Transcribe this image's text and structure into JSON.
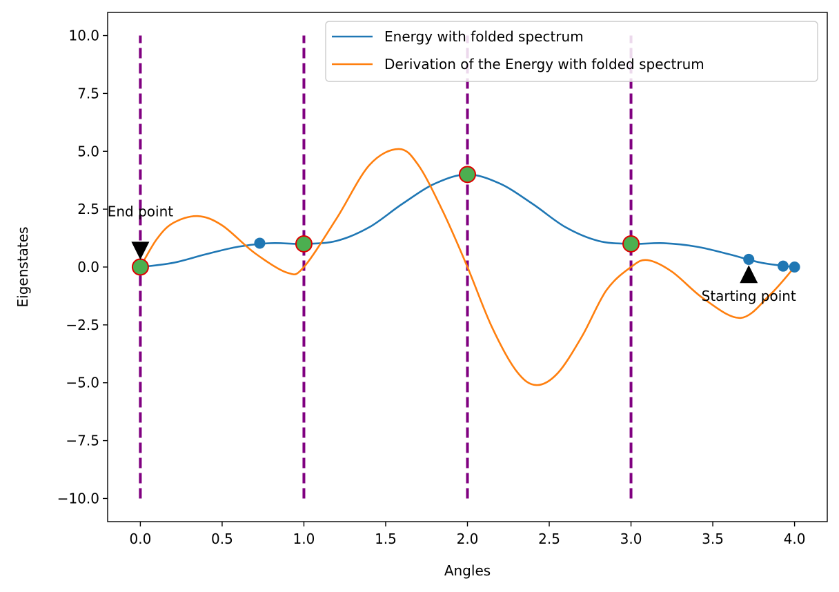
{
  "chart_data": {
    "type": "line",
    "title": "",
    "xlabel": "Angles",
    "ylabel": "Eigenstates",
    "xlim": [
      -0.2,
      4.2
    ],
    "ylim": [
      -11.0,
      11.0
    ],
    "xticks": [
      0.0,
      0.5,
      1.0,
      1.5,
      2.0,
      2.5,
      3.0,
      3.5,
      4.0
    ],
    "xtick_labels": [
      "0.0",
      "0.5",
      "1.0",
      "1.5",
      "2.0",
      "2.5",
      "3.0",
      "3.5",
      "4.0"
    ],
    "yticks": [
      -10.0,
      -7.5,
      -5.0,
      -2.5,
      0.0,
      2.5,
      5.0,
      7.5,
      10.0
    ],
    "ytick_labels": [
      "−10.0",
      "−7.5",
      "−5.0",
      "−2.5",
      "0.0",
      "2.5",
      "5.0",
      "7.5",
      "10.0"
    ],
    "grid": false,
    "legend_position": "top-right",
    "series": [
      {
        "name": "Energy with folded spectrum",
        "color": "#1f77b4",
        "x": [
          0.0,
          0.2,
          0.4,
          0.6,
          0.8,
          1.0,
          1.2,
          1.4,
          1.6,
          1.8,
          2.0,
          2.2,
          2.4,
          2.6,
          2.8,
          3.0,
          3.2,
          3.4,
          3.6,
          3.8,
          4.0
        ],
        "values": [
          0.0,
          0.18,
          0.55,
          0.88,
          1.03,
          1.0,
          1.13,
          1.72,
          2.72,
          3.6,
          4.0,
          3.6,
          2.72,
          1.72,
          1.13,
          1.0,
          1.03,
          0.88,
          0.55,
          0.18,
          0.0
        ]
      },
      {
        "name": "Derivation of the Energy with folded spectrum",
        "color": "#ff7f0e",
        "x": [
          0.0,
          0.1,
          0.2,
          0.35,
          0.5,
          0.7,
          0.9,
          1.0,
          1.2,
          1.4,
          1.58,
          1.7,
          1.85,
          2.0,
          2.15,
          2.3,
          2.42,
          2.55,
          2.7,
          2.85,
          3.0,
          3.1,
          3.25,
          3.45,
          3.67,
          3.85,
          4.0
        ],
        "values": [
          0.0,
          1.2,
          1.9,
          2.2,
          1.8,
          0.6,
          -0.25,
          0.0,
          2.1,
          4.4,
          5.1,
          4.4,
          2.4,
          0.0,
          -2.6,
          -4.5,
          -5.1,
          -4.6,
          -3.0,
          -1.0,
          0.0,
          0.3,
          -0.2,
          -1.4,
          -2.2,
          -1.2,
          0.0
        ]
      }
    ],
    "scatter_points": {
      "color": "#1f77b4",
      "x": [
        0.73,
        3.72,
        3.93,
        4.0
      ],
      "y": [
        1.03,
        0.33,
        0.04,
        0.0
      ]
    },
    "highlight_points": {
      "face_color": "#4caf50",
      "edge_color": "#dd0000",
      "x": [
        0.0,
        1.0,
        2.0,
        3.0
      ],
      "y": [
        0.0,
        1.0,
        4.0,
        1.0
      ]
    },
    "vertical_lines": {
      "color": "#800080",
      "style": "dashed",
      "x": [
        0.0,
        1.0,
        2.0,
        3.0
      ],
      "ymin": -10.0,
      "ymax": 10.0
    },
    "annotations": [
      {
        "text": "End point",
        "point": [
          0.0,
          0.0
        ],
        "marker": "down-triangle",
        "marker_y": 0.55,
        "text_y": 2.4
      },
      {
        "text": "Starting point",
        "point": [
          3.72,
          0.0
        ],
        "marker": "up-triangle",
        "marker_y": -0.15,
        "text_y": -1.25
      }
    ]
  }
}
